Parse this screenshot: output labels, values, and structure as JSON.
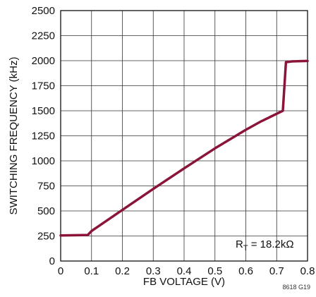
{
  "chart_data": {
    "type": "line",
    "xlabel": "FB VOLTAGE (V)",
    "ylabel": "SWITCHING FREQUENCY (kHz)",
    "xlim": [
      0,
      0.8
    ],
    "ylim": [
      0,
      2500
    ],
    "xticks": [
      "0",
      "0.1",
      "0.2",
      "0.3",
      "0.4",
      "0.5",
      "0.6",
      "0.7",
      "0.8"
    ],
    "yticks": [
      "0",
      "250",
      "500",
      "750",
      "1000",
      "1250",
      "1500",
      "1750",
      "2000",
      "2250",
      "2500"
    ],
    "grid": true,
    "series": [
      {
        "color": "#8a1538",
        "x": [
          0,
          0.088,
          0.1,
          0.2,
          0.3,
          0.4,
          0.5,
          0.6,
          0.65,
          0.7,
          0.72,
          0.73,
          0.75,
          0.8
        ],
        "y": [
          255,
          260,
          300,
          510,
          720,
          925,
          1125,
          1310,
          1395,
          1470,
          1500,
          1985,
          1993,
          1997
        ]
      }
    ],
    "annotation": {
      "main": "R",
      "sub": "T",
      "rest": " = 18.2kΩ"
    },
    "figure_code": "8618 G19"
  }
}
